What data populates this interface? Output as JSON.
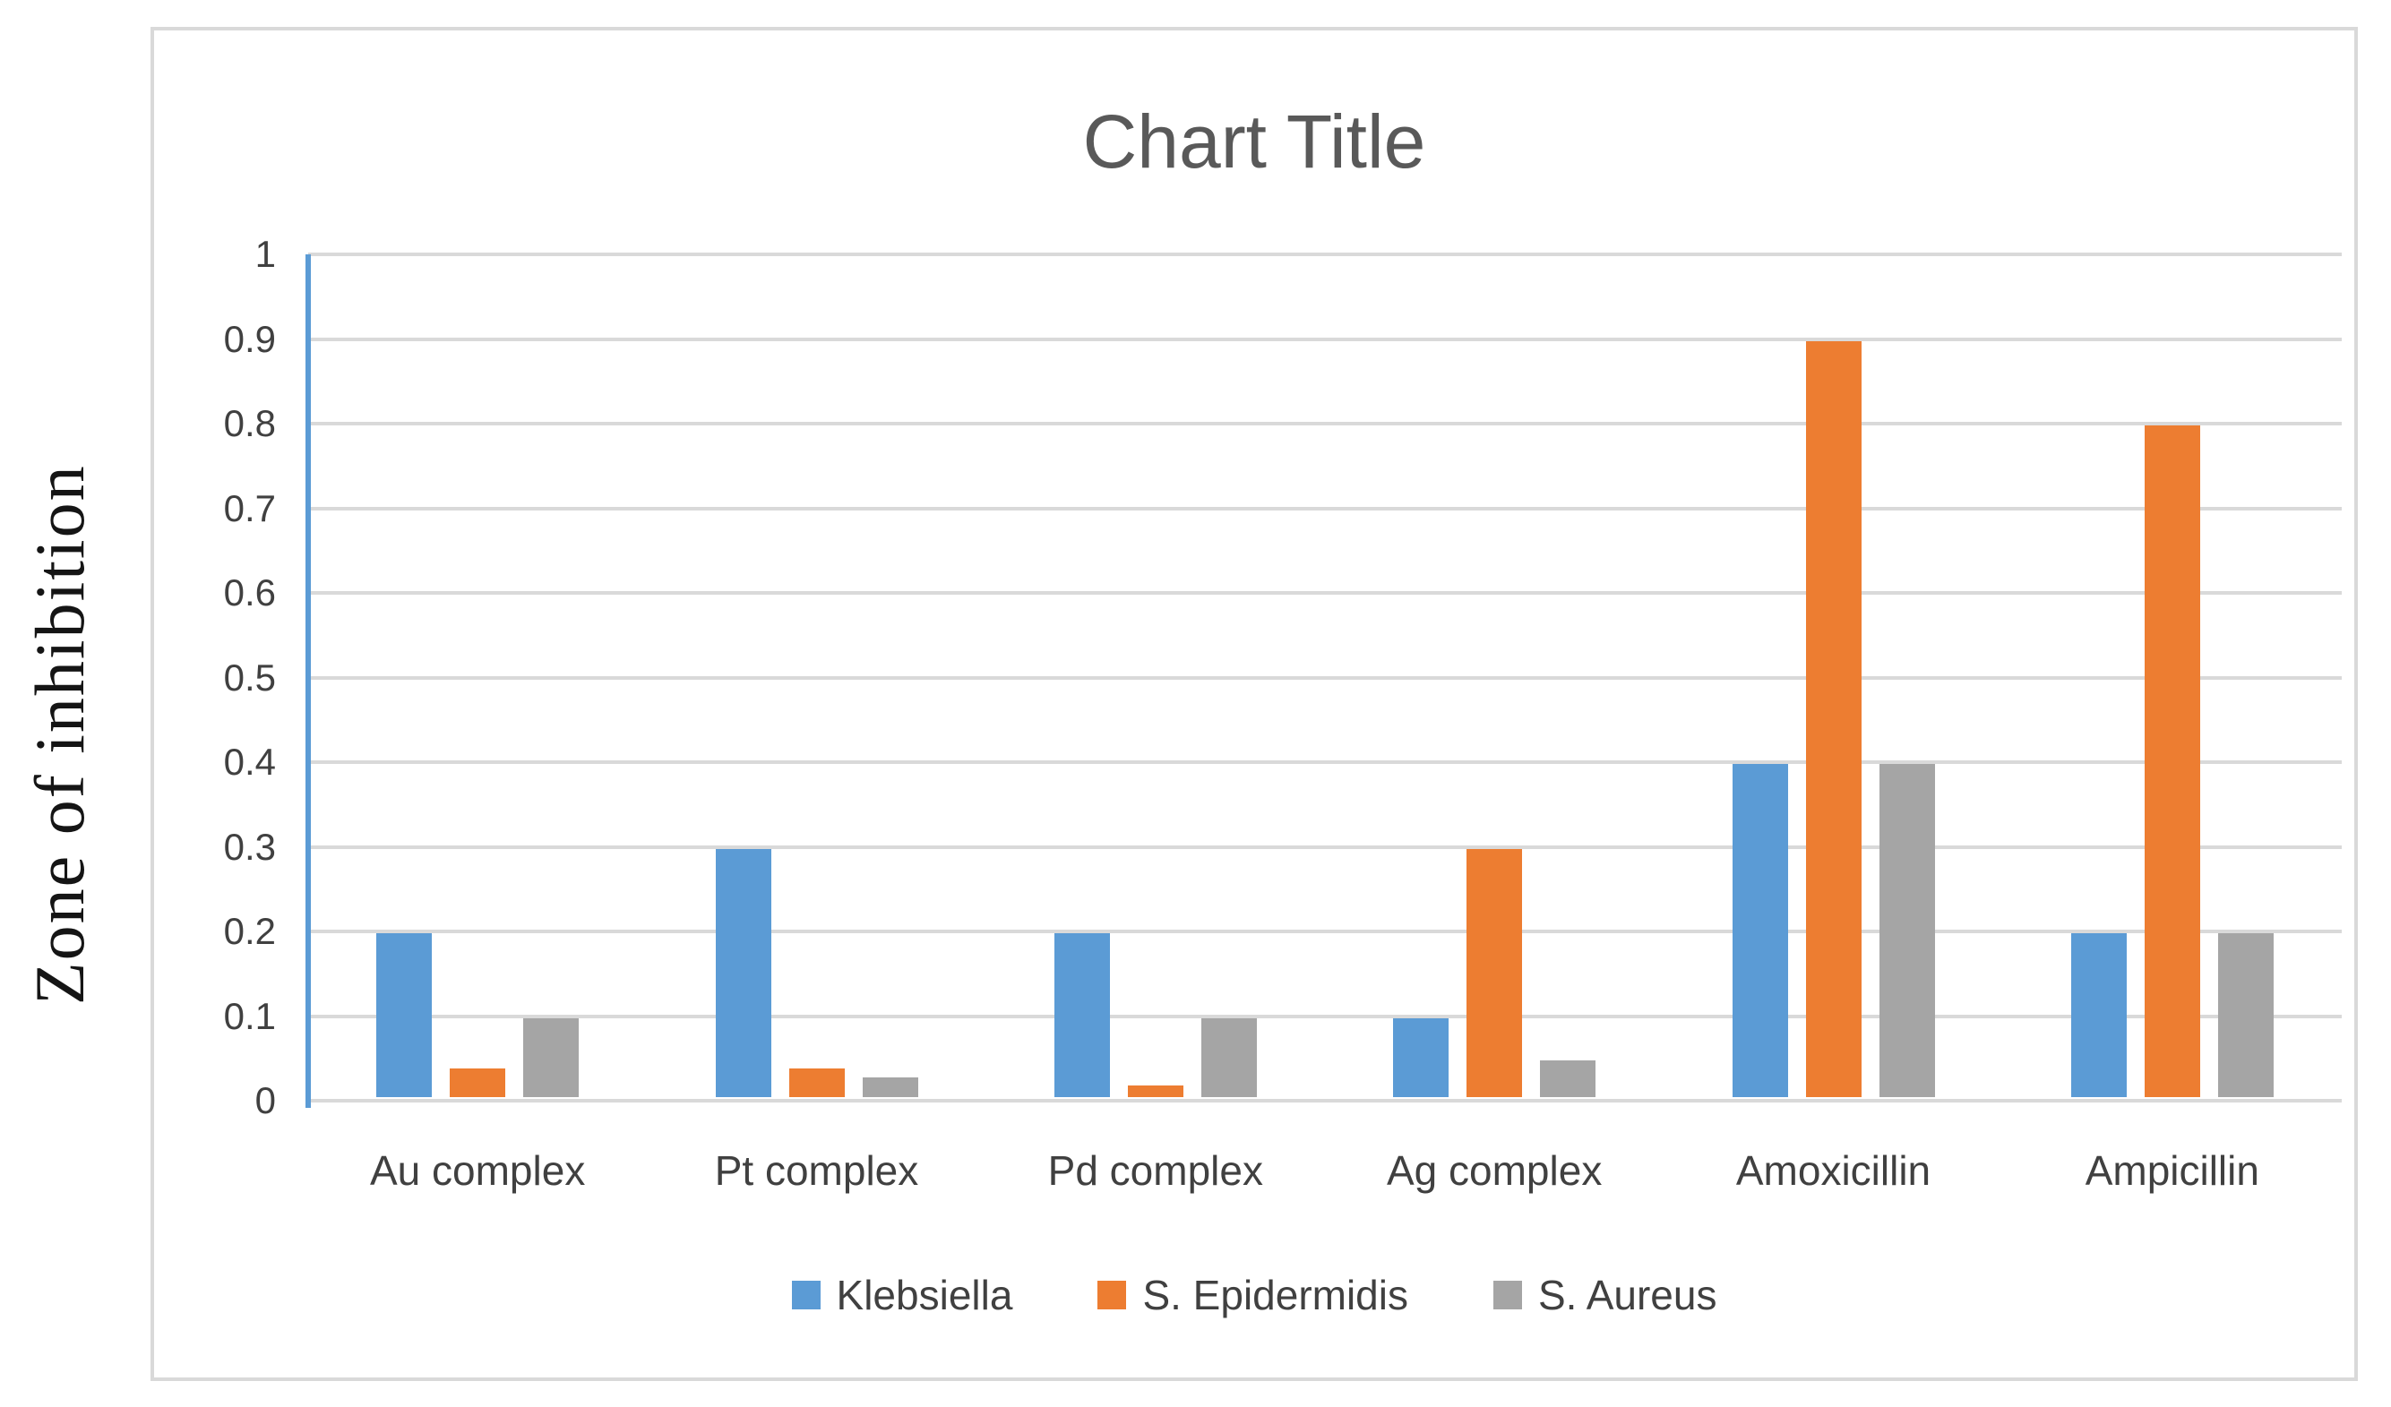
{
  "chart_data": {
    "type": "bar",
    "title": "Chart Title",
    "ylabel": "Zone of inhibition",
    "xlabel": "",
    "categories": [
      "Au complex",
      "Pt complex",
      "Pd complex",
      "Ag complex",
      "Amoxicillin",
      "Ampicillin"
    ],
    "series": [
      {
        "name": "Klebsiella",
        "color": "#5B9BD5",
        "values": [
          0.2,
          0.3,
          0.2,
          0.1,
          0.4,
          0.2
        ]
      },
      {
        "name": "S. Epidermidis",
        "color": "#ED7D31",
        "values": [
          0.04,
          0.04,
          0.02,
          0.3,
          0.9,
          0.8
        ]
      },
      {
        "name": "S. Aureus",
        "color": "#A5A5A5",
        "values": [
          0.1,
          0.03,
          0.1,
          0.05,
          0.4,
          0.2
        ]
      }
    ],
    "ylim": [
      0,
      1
    ],
    "ytick_labels": [
      "1",
      "0.9",
      "0.8",
      "0.7",
      "0.6",
      "0.5",
      "0.4",
      "0.3",
      "0.2",
      "0.1",
      "0"
    ],
    "ytick_values": [
      1,
      0.9,
      0.8,
      0.7,
      0.6,
      0.5,
      0.4,
      0.3,
      0.2,
      0.1,
      0
    ],
    "grid": "horizontal",
    "legend_position": "bottom",
    "colors": {
      "gridline": "#D9D9D9",
      "y_axis_line": "#5B9BD5",
      "title_text": "#595959",
      "tick_text": "#404040",
      "chart_border": "#D9D9D9"
    }
  }
}
